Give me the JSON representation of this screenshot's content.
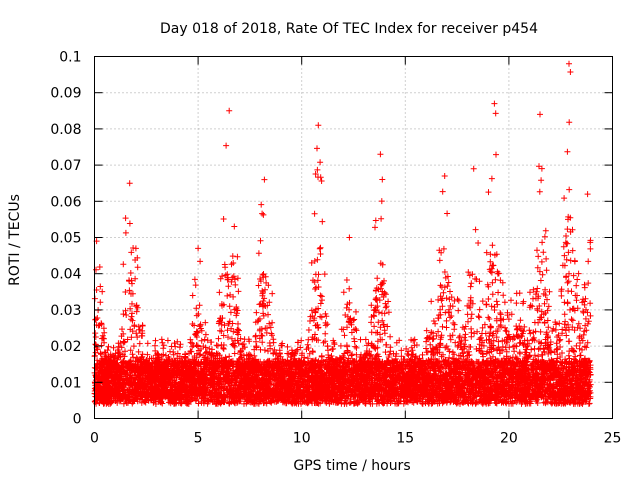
{
  "chart_data": {
    "type": "scatter",
    "title": "Day 018 of 2018, Rate Of TEC Index for receiver p454",
    "xlabel": "GPS time / hours",
    "ylabel": "ROTI / TECUs",
    "xlim": [
      0,
      25
    ],
    "ylim": [
      0,
      0.1
    ],
    "x_ticks": [
      0,
      5,
      10,
      15,
      20,
      25
    ],
    "x_tick_labels": [
      "0",
      "5",
      "10",
      "15",
      "20",
      "25"
    ],
    "y_ticks": [
      0,
      0.01,
      0.02,
      0.03,
      0.04,
      0.05,
      0.06,
      0.07,
      0.08,
      0.09,
      0.1
    ],
    "y_tick_labels": [
      "0",
      "0.01",
      "0.02",
      "0.03",
      "0.04",
      "0.05",
      "0.06",
      "0.07",
      "0.08",
      "0.09",
      "0.1"
    ],
    "grid": true,
    "marker": "+",
    "color": "#ff0000",
    "series": [
      {
        "name": "ROTI",
        "x_range": [
          0,
          23.95
        ],
        "baseline_typical": 0.012,
        "peaks": [
          {
            "x": 0.1,
            "y": 0.049
          },
          {
            "x": 1.7,
            "y": 0.065
          },
          {
            "x": 2.0,
            "y": 0.047
          },
          {
            "x": 5.0,
            "y": 0.047
          },
          {
            "x": 6.5,
            "y": 0.085
          },
          {
            "x": 8.2,
            "y": 0.066
          },
          {
            "x": 10.8,
            "y": 0.081
          },
          {
            "x": 12.3,
            "y": 0.05
          },
          {
            "x": 13.8,
            "y": 0.073
          },
          {
            "x": 16.9,
            "y": 0.067
          },
          {
            "x": 18.3,
            "y": 0.069
          },
          {
            "x": 19.3,
            "y": 0.087
          },
          {
            "x": 21.5,
            "y": 0.084
          },
          {
            "x": 22.9,
            "y": 0.098
          },
          {
            "x": 23.8,
            "y": 0.062
          }
        ]
      }
    ]
  }
}
